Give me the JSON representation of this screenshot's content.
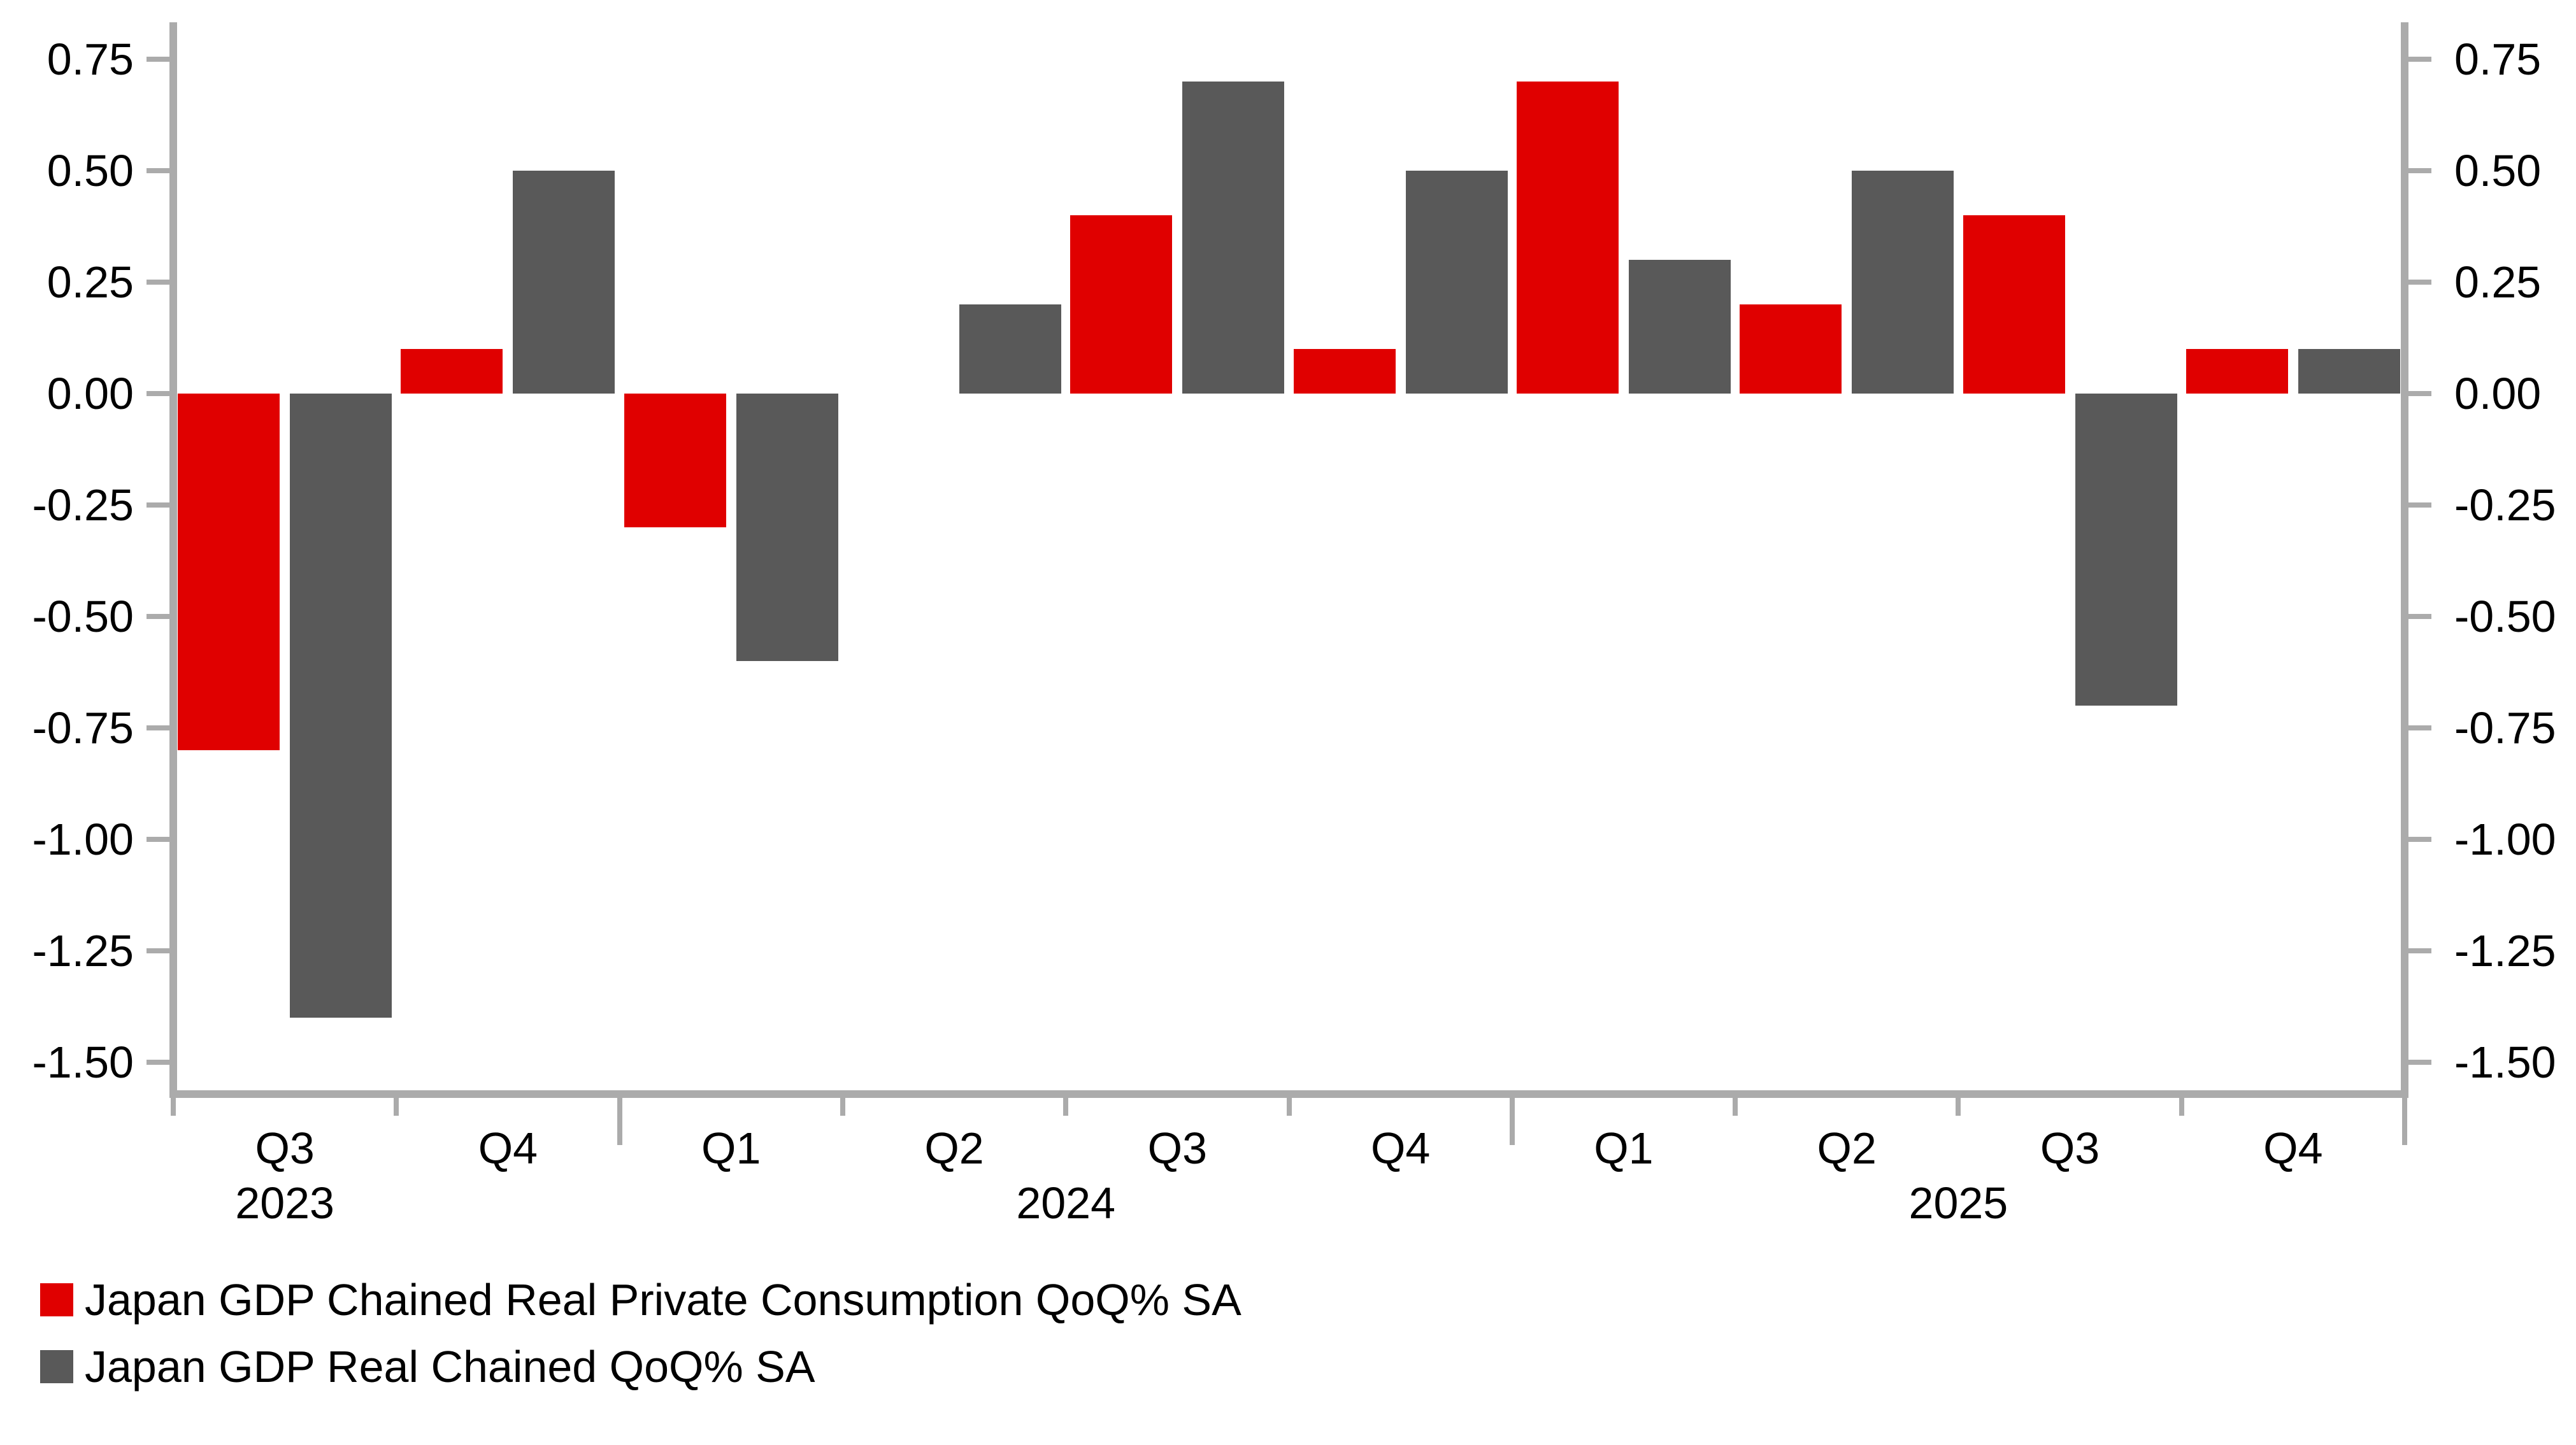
{
  "chart_data": {
    "type": "bar",
    "title": "",
    "categories": [
      "2023-q3",
      "2023-q4",
      "2024-q1",
      "2024-q2",
      "2024-q3",
      "2024-q4",
      "2025-q1",
      "2025-q2",
      "2025-q3",
      "2025-q4"
    ],
    "x_quarter_labels": [
      "Q3",
      "Q4",
      "Q1",
      "Q2",
      "Q3",
      "Q4",
      "Q1",
      "Q2",
      "Q3",
      "Q4"
    ],
    "x_year_labels": [
      {
        "label": "2023",
        "anchor_boundary": 0.5
      },
      {
        "label": "2024",
        "anchor_boundary": 4
      },
      {
        "label": "2025",
        "anchor_boundary": 8
      }
    ],
    "series": [
      {
        "id": "private-consumption",
        "name": "Japan GDP Chained Real Private Consumption QoQ% SA",
        "color": "#e00000",
        "values": [
          -0.8,
          0.1,
          -0.3,
          0.0,
          0.4,
          0.1,
          0.7,
          0.2,
          0.4,
          0.1
        ]
      },
      {
        "id": "real-gdp",
        "name": "Japan GDP Real Chained QoQ% SA",
        "color": "#595959",
        "values": [
          -1.4,
          0.5,
          -0.6,
          0.2,
          0.7,
          0.5,
          0.3,
          0.5,
          -0.7,
          0.1
        ]
      }
    ],
    "y_axis": {
      "ticks": [
        0.75,
        0.5,
        0.25,
        0.0,
        -0.25,
        -0.5,
        -0.75,
        -1.0,
        -1.25,
        -1.5
      ],
      "tick_decimals": 2,
      "ylim": [
        -1.563,
        0.833
      ],
      "sides": [
        "left",
        "right"
      ],
      "grid": false
    },
    "year_end_tick_boundaries": [
      2,
      6,
      10
    ],
    "legend_position": "bottom-left"
  },
  "legend": {
    "items": [
      {
        "label": "Japan GDP Chained Real Private Consumption QoQ% SA",
        "color": "#e00000"
      },
      {
        "label": "Japan GDP Real Chained QoQ% SA",
        "color": "#595959"
      }
    ]
  },
  "colors": {
    "axis": "#ababab",
    "text": "#000000",
    "background": "#ffffff"
  }
}
